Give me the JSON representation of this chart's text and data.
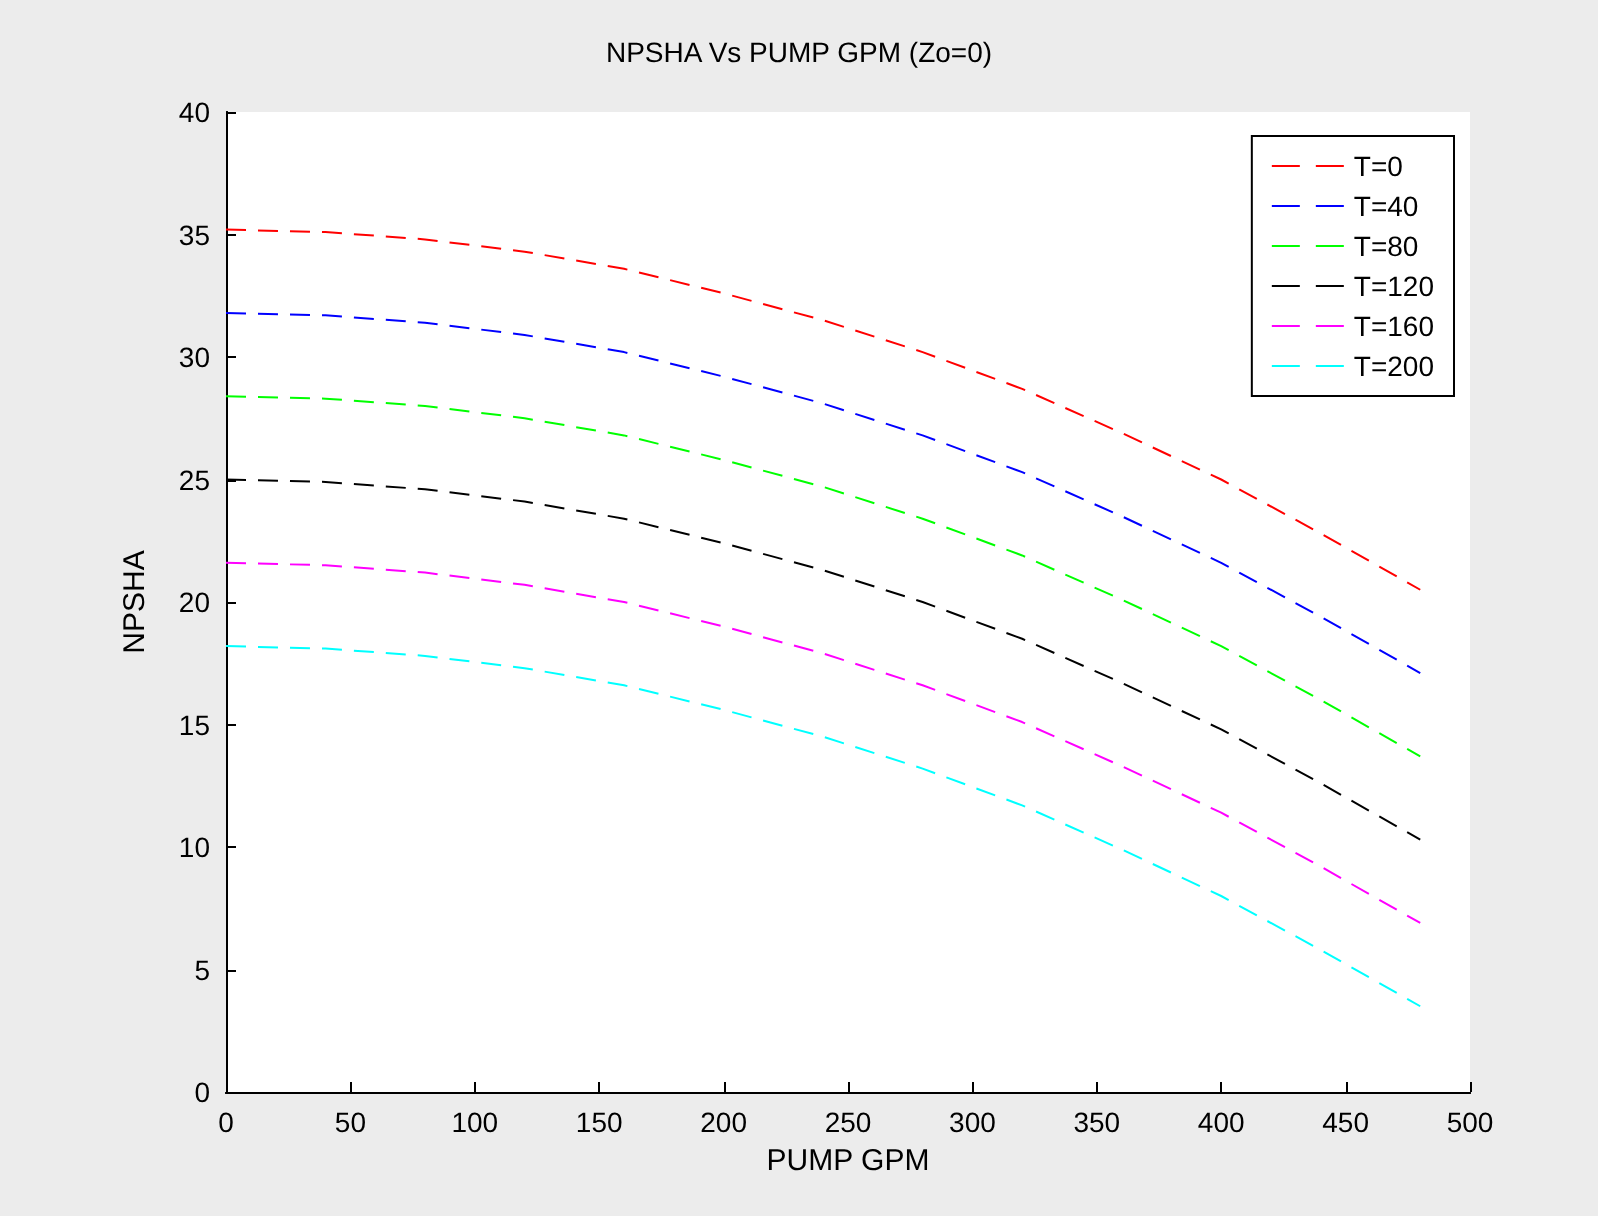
{
  "chart_data": {
    "type": "line",
    "title": "NPSHA Vs PUMP GPM (Zo=0)",
    "xlabel": "PUMP GPM",
    "ylabel": "NPSHA",
    "x": [
      0,
      40,
      80,
      120,
      160,
      200,
      240,
      280,
      320,
      360,
      400,
      440,
      480
    ],
    "series": [
      {
        "name": "T=0",
        "color": "#ff0000",
        "values": [
          35.2,
          35.1,
          34.8,
          34.3,
          33.6,
          32.6,
          31.5,
          30.2,
          28.7,
          26.9,
          25.0,
          22.8,
          20.5
        ]
      },
      {
        "name": "T=40",
        "color": "#0000ff",
        "values": [
          31.8,
          31.7,
          31.4,
          30.9,
          30.2,
          29.2,
          28.1,
          26.8,
          25.3,
          23.5,
          21.6,
          19.4,
          17.1
        ]
      },
      {
        "name": "T=80",
        "color": "#00ff00",
        "values": [
          28.4,
          28.3,
          28.0,
          27.5,
          26.8,
          25.8,
          24.7,
          23.4,
          21.9,
          20.1,
          18.2,
          16.0,
          13.7
        ]
      },
      {
        "name": "T=120",
        "color": "#000000",
        "values": [
          25.0,
          24.9,
          24.6,
          24.1,
          23.4,
          22.4,
          21.3,
          20.0,
          18.5,
          16.7,
          14.8,
          12.6,
          10.3
        ]
      },
      {
        "name": "T=160",
        "color": "#ff00ff",
        "values": [
          21.6,
          21.5,
          21.2,
          20.7,
          20.0,
          19.0,
          17.9,
          16.6,
          15.1,
          13.3,
          11.4,
          9.2,
          6.9
        ]
      },
      {
        "name": "T=200",
        "color": "#00ffff",
        "values": [
          18.2,
          18.1,
          17.8,
          17.3,
          16.6,
          15.6,
          14.5,
          13.2,
          11.7,
          9.9,
          8.0,
          5.8,
          3.5
        ]
      }
    ],
    "xlim": [
      0,
      500
    ],
    "xticks": [
      0,
      50,
      100,
      150,
      200,
      250,
      300,
      350,
      400,
      450,
      500
    ],
    "ylim": [
      0,
      40
    ],
    "yticks": [
      0,
      5,
      10,
      15,
      20,
      25,
      30,
      35,
      40
    ],
    "grid": false,
    "legend": "top right",
    "marker": "none",
    "line_style": "dashed"
  }
}
